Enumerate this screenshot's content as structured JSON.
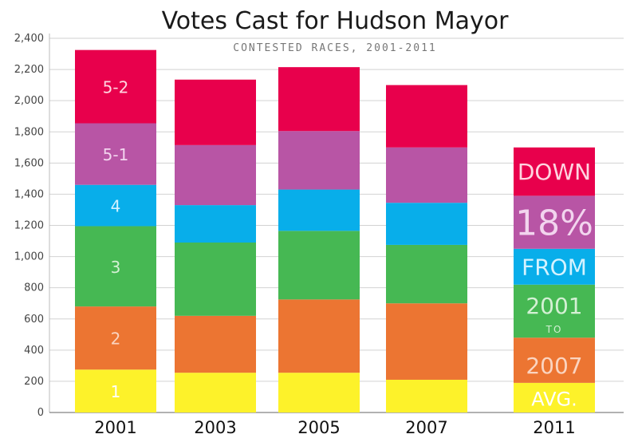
{
  "chart_data": {
    "type": "bar",
    "stacked": true,
    "title": "Votes Cast for Hudson Mayor",
    "subtitle": "CONTESTED RACES, 2001-2011",
    "categories": [
      "2001",
      "2003",
      "2005",
      "2007",
      "2011"
    ],
    "ylim": [
      0,
      2400
    ],
    "yticks": [
      "0",
      "200",
      "400",
      "600",
      "800",
      "1,000",
      "1,200",
      "1,400",
      "1,600",
      "1,800",
      "2,000",
      "2,200",
      "2,400"
    ],
    "grid": true,
    "series": [
      {
        "name": "1",
        "color": "#fdf22a",
        "values": [
          275,
          255,
          255,
          210,
          190
        ]
      },
      {
        "name": "2",
        "color": "#ec7532",
        "values": [
          405,
          365,
          470,
          490,
          290
        ]
      },
      {
        "name": "3",
        "color": "#46b853",
        "values": [
          515,
          470,
          440,
          375,
          340
        ]
      },
      {
        "name": "4",
        "color": "#08aeea",
        "values": [
          265,
          240,
          265,
          270,
          230
        ]
      },
      {
        "name": "5-1",
        "color": "#b855a5",
        "values": [
          395,
          385,
          375,
          355,
          340
        ]
      },
      {
        "name": "5-2",
        "color": "#e8004c",
        "values": [
          470,
          420,
          410,
          400,
          310
        ]
      }
    ],
    "annotations": {
      "category": "2011",
      "labels": [
        "AVG.",
        "2007",
        "FROM",
        "DOWN"
      ],
      "top_text": [
        "2001",
        "TO"
      ],
      "big_text": "18%"
    }
  }
}
